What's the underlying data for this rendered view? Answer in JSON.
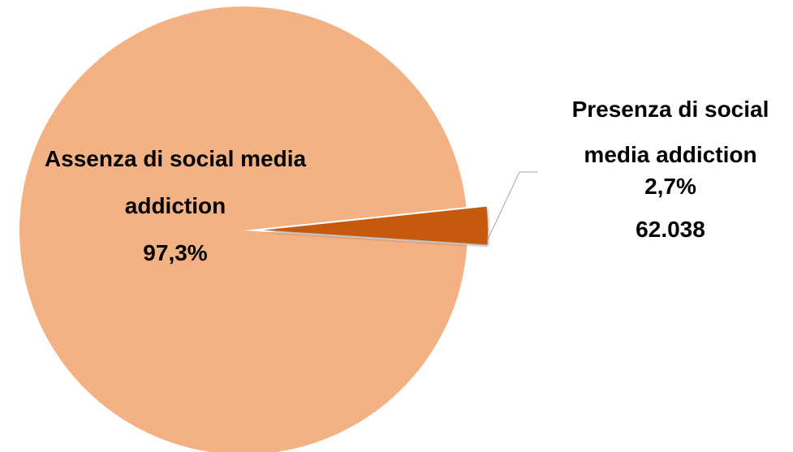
{
  "chart_data": {
    "type": "pie",
    "slices": [
      {
        "name_lines": [
          "Assenza di social media",
          "addiction"
        ],
        "percent_label": "97,3%",
        "value": 97.3,
        "color": "#F4B183"
      },
      {
        "name_lines": [
          "Presenza di social",
          "media addiction"
        ],
        "percent_label": "2,7%",
        "count_label": "62.038",
        "value": 2.7,
        "color": "#C55A11"
      }
    ],
    "legend": "none"
  }
}
